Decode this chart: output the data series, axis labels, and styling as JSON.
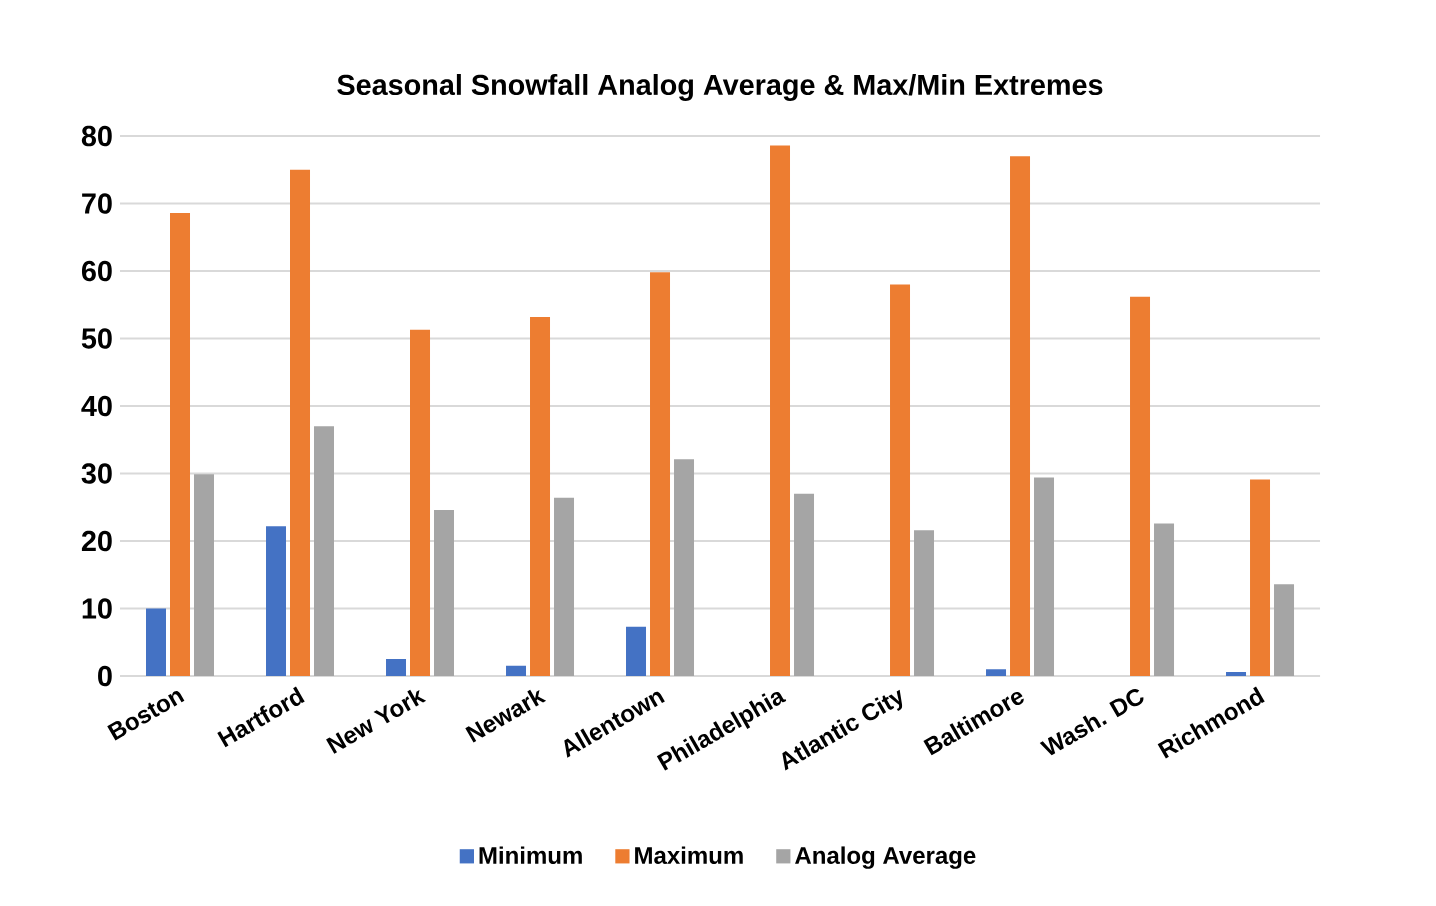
{
  "chart_data": {
    "type": "bar",
    "title": "Seasonal Snowfall Analog Average & Max/Min Extremes",
    "categories": [
      "Boston",
      "Hartford",
      "New York",
      "Newark",
      "Allentown",
      "Philadelphia",
      "Atlantic City",
      "Baltimore",
      "Wash. DC",
      "Richmond"
    ],
    "series": [
      {
        "name": "Minimum",
        "color": "#4472c4",
        "values": [
          10,
          22.2,
          2.5,
          1.5,
          7.3,
          0,
          0,
          1.0,
          0,
          0.6
        ]
      },
      {
        "name": "Maximum",
        "color": "#ed7d31",
        "values": [
          68.6,
          75.0,
          51.3,
          53.2,
          59.8,
          78.6,
          58.0,
          77.0,
          56.2,
          29.1
        ]
      },
      {
        "name": "Analog Average",
        "color": "#a5a5a5",
        "values": [
          29.9,
          37.0,
          24.6,
          26.4,
          32.1,
          27.0,
          21.6,
          29.4,
          22.6,
          13.6
        ]
      }
    ],
    "ylim": [
      0,
      80
    ],
    "yticks": [
      0,
      10,
      20,
      30,
      40,
      50,
      60,
      70,
      80
    ],
    "grid": "y",
    "legend": "bottom"
  }
}
